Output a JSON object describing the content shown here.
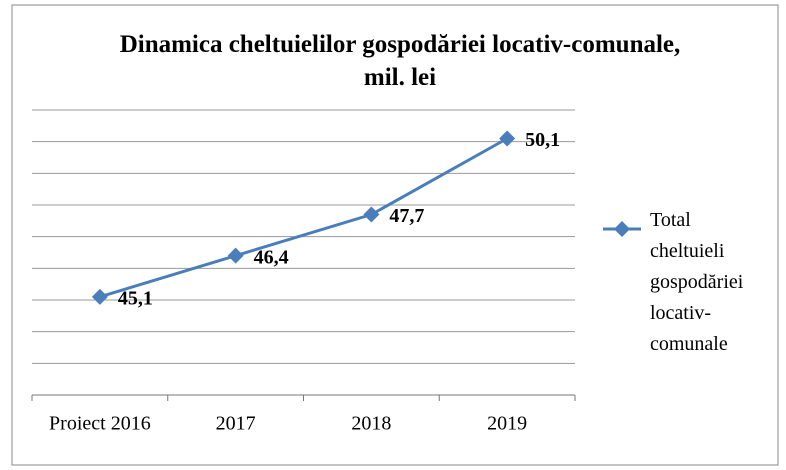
{
  "chart_data": {
    "type": "line",
    "title": "Dinamica cheltuielilor gospodăriei locativ-comunale, mil. lei",
    "categories": [
      "Proiect 2016",
      "2017",
      "2018",
      "2019"
    ],
    "series": [
      {
        "name": "Total cheltuieli gospodăriei locativ-comunale",
        "color": "#4a7ebb",
        "values": [
          45.1,
          46.4,
          47.7,
          50.1
        ],
        "value_labels": [
          "45,1",
          "46,4",
          "47,7",
          "50,1"
        ]
      }
    ],
    "ylim": [
      42,
      51
    ],
    "yticks": [
      42,
      43,
      44,
      45,
      46,
      47,
      48,
      49,
      50,
      51
    ],
    "grid": true,
    "legend": "right"
  }
}
